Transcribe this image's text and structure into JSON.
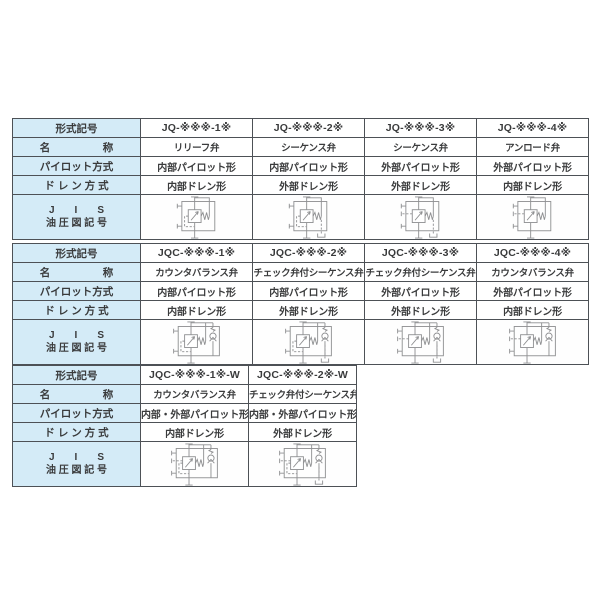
{
  "colors": {
    "header_bg": "#d4ebf7",
    "border": "#4d5156",
    "text": "#3a3b3c",
    "symbol_stroke": "#8f9092"
  },
  "row_labels": {
    "model": "形式記号",
    "name": "名　　　　　称",
    "pilot": "パイロット方式",
    "drain": "ド レ ン 方 式",
    "jis_line1": "J　　I　　S",
    "jis_line2": "油 圧 図 記 号"
  },
  "tables": [
    {
      "columns": [
        {
          "model": "JQ-※※※-1※",
          "name": "リリーフ弁",
          "pilot": "内部パイロット形",
          "drain": "内部ドレン形",
          "symbol": {
            "icon_name": "relief-valve-symbol",
            "check": false,
            "pilot": "internal",
            "drain": "internal"
          }
        },
        {
          "model": "JQ-※※※-2※",
          "name": "シーケンス弁",
          "pilot": "内部パイロット形",
          "drain": "外部ドレン形",
          "symbol": {
            "icon_name": "sequence-valve-symbol",
            "check": false,
            "pilot": "internal",
            "drain": "external"
          }
        },
        {
          "model": "JQ-※※※-3※",
          "name": "シーケンス弁",
          "pilot": "外部パイロット形",
          "drain": "外部ドレン形",
          "symbol": {
            "icon_name": "sequence-valve-symbol",
            "check": false,
            "pilot": "external",
            "drain": "external"
          }
        },
        {
          "model": "JQ-※※※-4※",
          "name": "アンロード弁",
          "pilot": "外部パイロット形",
          "drain": "内部ドレン形",
          "symbol": {
            "icon_name": "unload-valve-symbol",
            "check": false,
            "pilot": "external",
            "drain": "internal"
          }
        }
      ]
    },
    {
      "columns": [
        {
          "model": "JQC-※※※-1※",
          "name": "カウンタバランス弁",
          "pilot": "内部パイロット形",
          "drain": "内部ドレン形",
          "symbol": {
            "icon_name": "counterbalance-valve-symbol",
            "check": true,
            "pilot": "internal",
            "drain": "internal"
          }
        },
        {
          "model": "JQC-※※※-2※",
          "name": "チェック弁付シーケンス弁",
          "pilot": "内部パイロット形",
          "drain": "外部ドレン形",
          "symbol": {
            "icon_name": "check-sequence-valve-symbol",
            "check": true,
            "pilot": "internal",
            "drain": "external"
          }
        },
        {
          "model": "JQC-※※※-3※",
          "name": "チェック弁付シーケンス弁",
          "pilot": "外部パイロット形",
          "drain": "外部ドレン形",
          "symbol": {
            "icon_name": "check-sequence-valve-symbol",
            "check": true,
            "pilot": "external",
            "drain": "external"
          }
        },
        {
          "model": "JQC-※※※-4※",
          "name": "カウンタバランス弁",
          "pilot": "外部パイロット形",
          "drain": "内部ドレン形",
          "symbol": {
            "icon_name": "counterbalance-valve-symbol",
            "check": true,
            "pilot": "external",
            "drain": "internal"
          }
        }
      ]
    },
    {
      "columns": [
        {
          "model": "JQC-※※※-1※-W",
          "name": "カウンタバランス弁",
          "pilot": "内部・外部パイロット形",
          "drain": "内部ドレン形",
          "symbol": {
            "icon_name": "counterbalance-valve-dual-pilot-symbol",
            "check": true,
            "pilot": "dual",
            "drain": "internal"
          }
        },
        {
          "model": "JQC-※※※-2※-W",
          "name": "チェック弁付シーケンス弁",
          "pilot": "内部・外部パイロット形",
          "drain": "外部ドレン形",
          "symbol": {
            "icon_name": "check-sequence-valve-dual-pilot-symbol",
            "check": true,
            "pilot": "dual",
            "drain": "external"
          }
        }
      ]
    }
  ]
}
